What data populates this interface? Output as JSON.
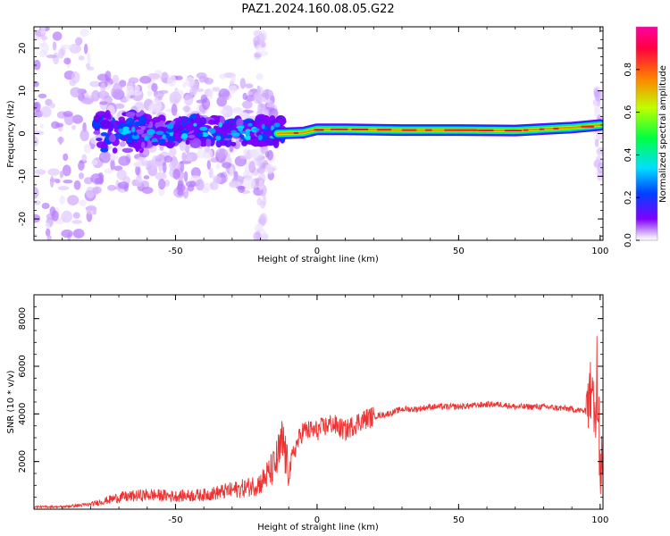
{
  "title": "PAZ1.2024.160.08.05.G22",
  "chart_data": [
    {
      "type": "heatmap",
      "xlabel": "Height of straight line (km)",
      "ylabel": "Frequency (Hz)",
      "xlim": [
        -100,
        101
      ],
      "ylim": [
        -25,
        25
      ],
      "xticks": [
        "-50",
        "0",
        "50",
        "100"
      ],
      "yticks": [
        "-20",
        "-10",
        "0",
        "10",
        "20"
      ],
      "colorbar": {
        "label": "Normalized spectral amplitude",
        "range": [
          0,
          1
        ],
        "ticks": [
          "0.0",
          "0.2",
          "0.4",
          "0.6",
          "0.8"
        ],
        "colors": [
          "#ffffff",
          "#7f00ff",
          "#0040ff",
          "#00e0ff",
          "#00ff40",
          "#c0ff00",
          "#ff8000",
          "#ff0040",
          "#ff00a0"
        ]
      },
      "tone_line_hz": [
        {
          "x": -14,
          "f": 0.0
        },
        {
          "x": -5,
          "f": 0.2
        },
        {
          "x": 0,
          "f": 1.0
        },
        {
          "x": 10,
          "f": 1.0
        },
        {
          "x": 30,
          "f": 0.8
        },
        {
          "x": 50,
          "f": 0.8
        },
        {
          "x": 70,
          "f": 0.7
        },
        {
          "x": 90,
          "f": 1.4
        },
        {
          "x": 100,
          "f": 2.0
        }
      ]
    },
    {
      "type": "line",
      "xlabel": "Height of straight line (km)",
      "ylabel": "SNR (10 * v/v)",
      "xlim": [
        -100,
        101
      ],
      "ylim": [
        0,
        9000
      ],
      "xticks": [
        "-50",
        "0",
        "50",
        "100"
      ],
      "yticks": [
        "2000",
        "4000",
        "6000",
        "8000"
      ],
      "color": "#ee3333",
      "series": [
        {
          "x": [
            -100,
            -90,
            -80,
            -70,
            -60,
            -50,
            -40,
            -30,
            -25,
            -20,
            -15,
            -12,
            -10,
            -8,
            -5,
            0,
            5,
            10,
            15,
            20,
            25,
            30,
            35,
            40,
            50,
            60,
            65,
            70,
            80,
            90,
            95,
            97,
            98,
            99,
            100,
            101
          ],
          "y": [
            100,
            100,
            200,
            500,
            600,
            550,
            600,
            800,
            900,
            1100,
            1800,
            2800,
            1500,
            2500,
            3300,
            3300,
            3600,
            3300,
            3700,
            3900,
            4000,
            4200,
            4200,
            4300,
            4300,
            4400,
            4400,
            4300,
            4300,
            4200,
            4100,
            5000,
            3800,
            4700,
            1500,
            2500
          ]
        }
      ]
    }
  ]
}
